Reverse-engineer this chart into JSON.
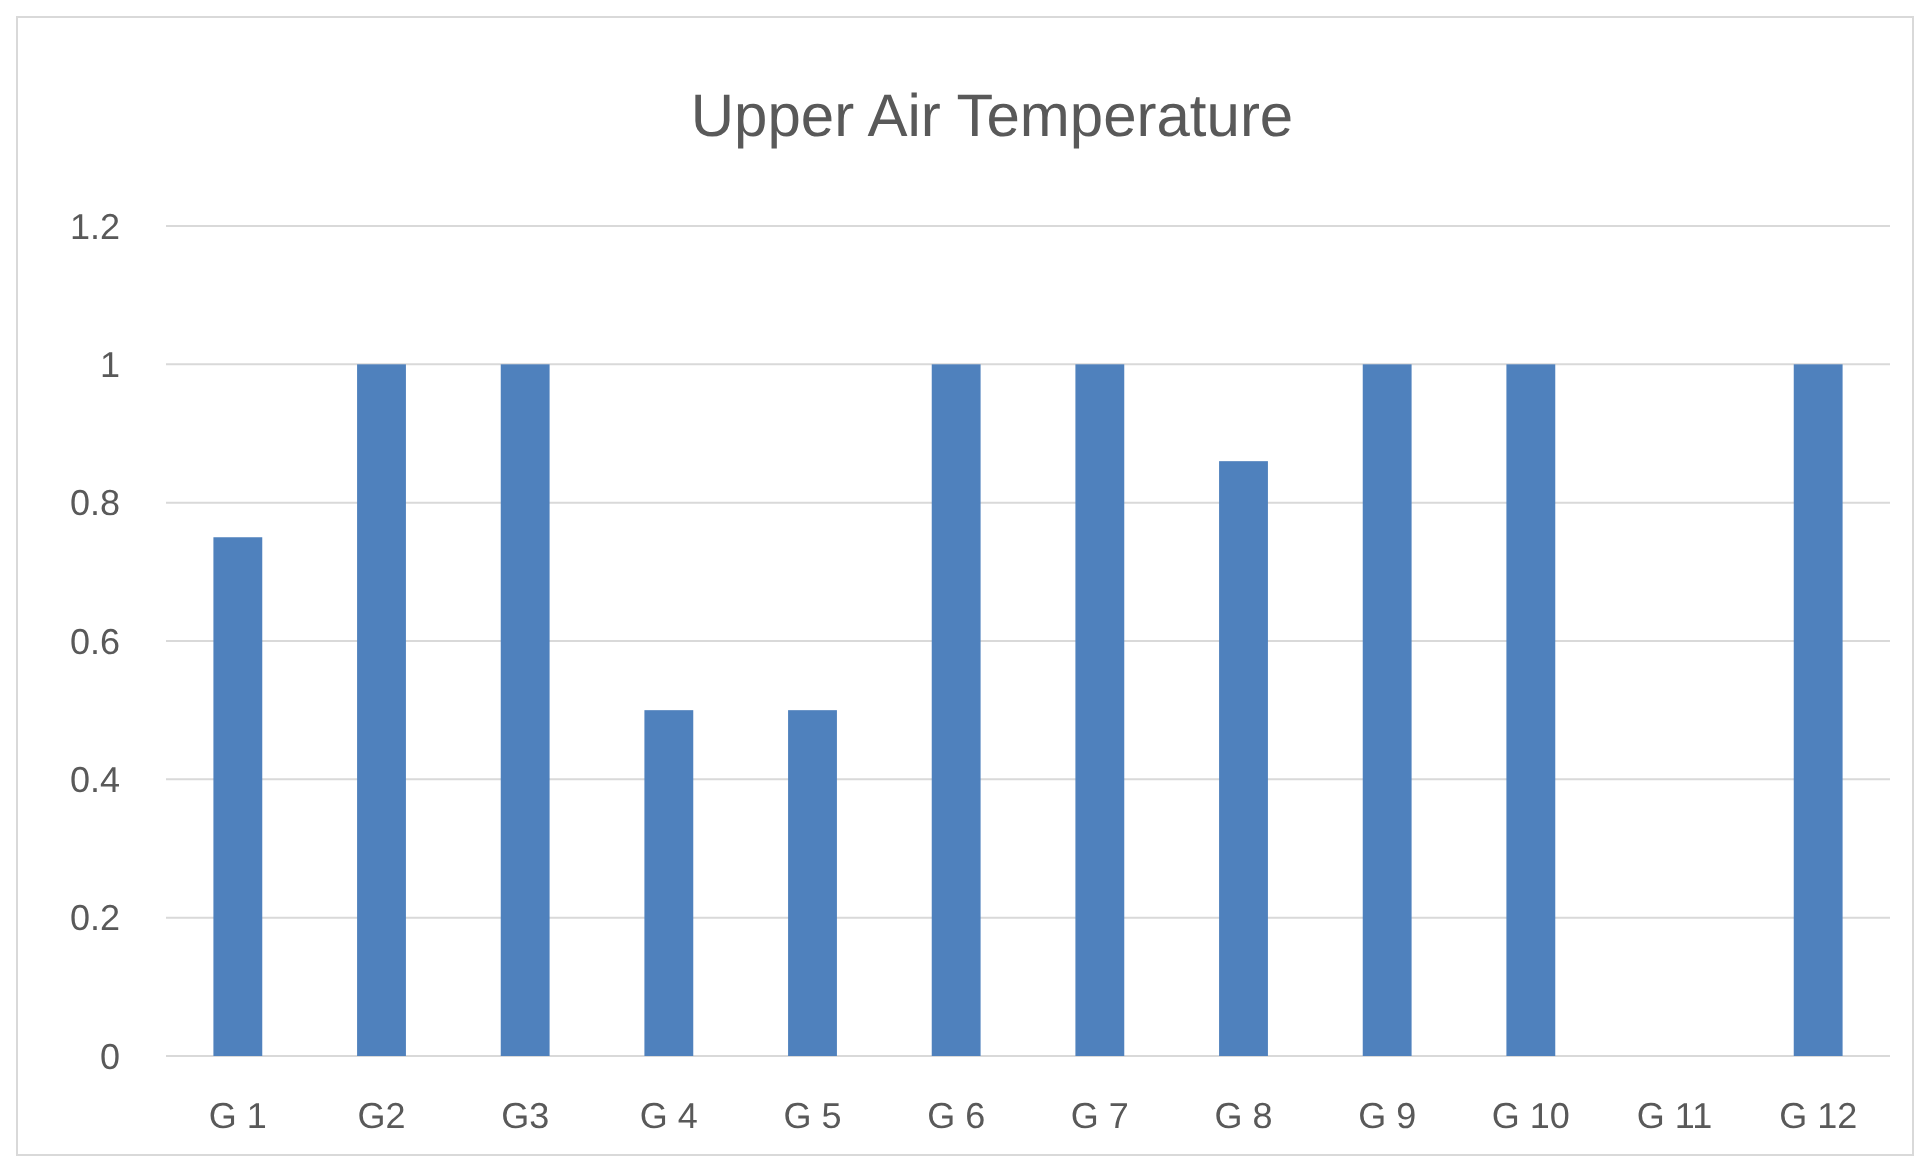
{
  "chart_data": {
    "type": "bar",
    "title": "Upper Air Temperature",
    "categories": [
      "G 1",
      "G2",
      "G3",
      "G 4",
      "G 5",
      "G 6",
      "G 7",
      "G 8",
      "G 9",
      "G 10",
      "G 11",
      "G 12"
    ],
    "values": [
      0.75,
      1,
      1,
      0.5,
      0.5,
      1,
      1,
      0.86,
      1,
      1,
      0,
      1
    ],
    "color": "#4f81bd",
    "ylim": [
      0,
      1.2
    ],
    "yticks": [
      0,
      0.2,
      0.4,
      0.6,
      0.8,
      1,
      1.2
    ],
    "grid": "y"
  }
}
